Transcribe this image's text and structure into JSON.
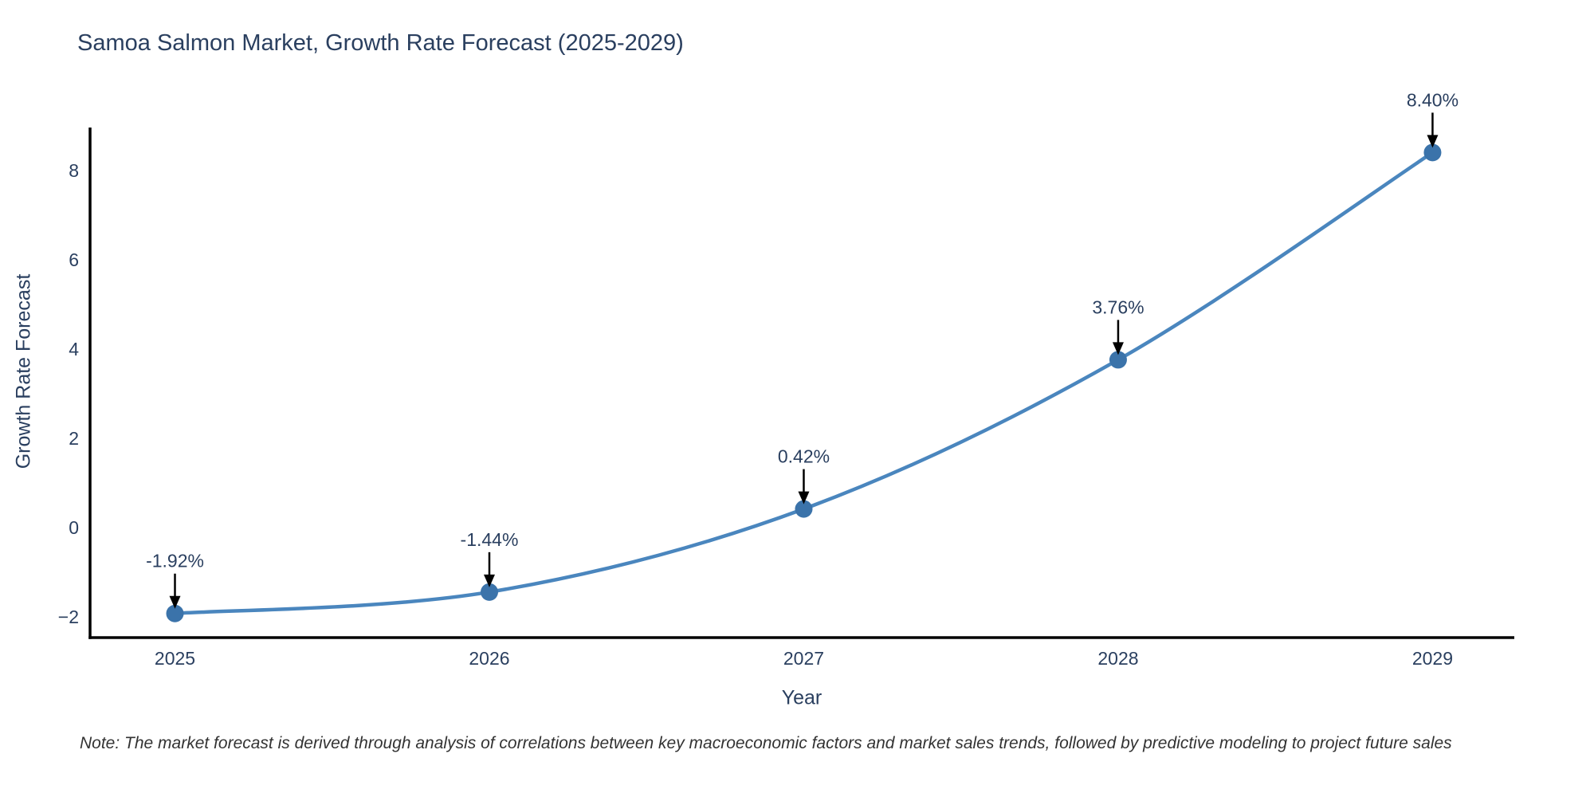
{
  "title": "Samoa Salmon Market, Growth Rate Forecast (2025-2029)",
  "note": "Note: The market forecast is derived through analysis of correlations between key macroeconomic factors and market sales trends, followed by predictive modeling to project future sales",
  "chart_data": {
    "type": "line",
    "title": "Samoa Salmon Market, Growth Rate Forecast (2025-2029)",
    "xlabel": "Year",
    "ylabel": "Growth Rate Forecast",
    "x": [
      2025,
      2026,
      2027,
      2028,
      2029
    ],
    "x_tick_labels": [
      "2025",
      "2026",
      "2027",
      "2028",
      "2029"
    ],
    "series": [
      {
        "name": "Growth Rate Forecast",
        "values": [
          -1.92,
          -1.44,
          0.42,
          3.76,
          8.4
        ]
      }
    ],
    "point_labels": [
      "-1.92%",
      "-1.44%",
      "0.42%",
      "3.76%",
      "8.40%"
    ],
    "yticks": [
      -2,
      0,
      2,
      4,
      6,
      8
    ],
    "ytick_labels": [
      "−2",
      "0",
      "2",
      "4",
      "6",
      "8"
    ],
    "ylim": [
      -2.46,
      8.96
    ],
    "xlim": [
      2024.73,
      2029.26
    ],
    "grid": false,
    "legend": "none",
    "line_shape": "spline",
    "line_color": "#4a86be",
    "marker_color": "#3b73aa",
    "axis_color": "#000000",
    "annotation_arrow_color": "#000000",
    "text_color": "#2a3f5f"
  },
  "colors": {
    "background": "#ffffff",
    "title_text": "#2a3f5f",
    "tick_text": "#2a3f5f",
    "note_text": "#333333"
  }
}
